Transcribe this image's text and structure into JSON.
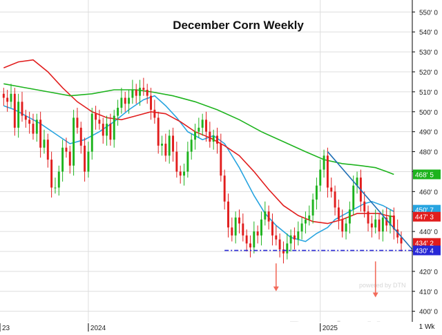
{
  "chart_data": {
    "type": "candlestick",
    "title": "December Corn Weekly",
    "y_axis": {
      "ticks": [
        "550' 0",
        "540' 0",
        "530' 0",
        "520' 0",
        "510' 0",
        "500' 0",
        "490' 0",
        "480' 0",
        "470' 0",
        "460' 0",
        "450' 0",
        "440' 0",
        "430' 0",
        "420' 0",
        "410' 0",
        "400' 0"
      ],
      "tick_values": [
        550,
        540,
        530,
        520,
        510,
        500,
        490,
        480,
        470,
        460,
        450,
        440,
        430,
        420,
        410,
        400
      ],
      "range": [
        394,
        556
      ],
      "side": "right",
      "grid": true
    },
    "x_axis": {
      "labels": [
        "23",
        "2024",
        "2025"
      ],
      "label_weeks": [
        -1,
        23,
        86
      ],
      "week_range": [
        -1,
        111
      ],
      "period": "1 Wk"
    },
    "price_markers": [
      {
        "label": "468' 5",
        "value": 468.6,
        "color": "#1db31d"
      },
      {
        "label": "450' 7",
        "value": 450.9,
        "color": "#27a4e0"
      },
      {
        "label": "447' 3",
        "value": 447.4,
        "color": "#e11d1d"
      },
      {
        "label": "434' 2",
        "value": 434.25,
        "color": "#e11d1d"
      },
      {
        "label": "430' 4",
        "value": 430.5,
        "color": "#2828d6"
      }
    ],
    "candles_close": [
      507,
      505,
      509,
      492,
      505,
      498,
      496,
      494,
      489,
      496,
      482,
      486,
      476,
      462,
      462,
      470,
      482,
      480,
      473,
      497,
      492,
      483,
      470,
      480,
      499,
      496,
      494,
      488,
      494,
      486,
      498,
      502,
      507,
      504,
      507,
      511,
      508,
      512,
      511,
      508,
      501,
      497,
      483,
      484,
      478,
      488,
      480,
      470,
      468,
      470,
      480,
      486,
      490,
      492,
      496,
      490,
      485,
      488,
      484,
      468,
      455,
      442,
      438,
      447,
      444,
      438,
      434,
      432,
      440,
      438,
      446,
      450,
      445,
      438,
      436,
      431,
      429,
      434,
      438,
      436,
      440,
      444,
      446,
      448,
      456,
      463,
      471,
      478,
      462,
      460,
      452,
      446,
      440,
      444,
      451,
      463,
      467,
      455,
      450,
      444,
      442,
      446,
      440,
      447,
      443,
      448,
      441,
      437,
      434
    ],
    "candle_first_week": 0,
    "candle_last_open": 441,
    "moving_averages": [
      {
        "name": "10-week",
        "color": "#27a4e0",
        "points": [
          [
            0,
            503
          ],
          [
            3,
            501
          ],
          [
            6,
            498
          ],
          [
            10,
            494
          ],
          [
            14,
            489
          ],
          [
            18,
            484
          ],
          [
            22,
            486
          ],
          [
            26,
            490
          ],
          [
            30,
            495
          ],
          [
            34,
            501
          ],
          [
            38,
            506
          ],
          [
            41,
            508
          ],
          [
            44,
            503
          ],
          [
            47,
            497
          ],
          [
            50,
            490
          ],
          [
            54,
            486
          ],
          [
            57,
            488
          ],
          [
            60,
            484
          ],
          [
            64,
            472
          ],
          [
            68,
            458
          ],
          [
            71,
            449
          ],
          [
            74,
            443
          ],
          [
            78,
            437
          ],
          [
            82,
            435
          ],
          [
            85,
            439
          ],
          [
            88,
            442
          ],
          [
            90,
            446
          ],
          [
            93,
            449
          ],
          [
            96,
            452
          ],
          [
            98,
            454
          ],
          [
            100,
            455
          ],
          [
            103,
            453
          ],
          [
            106,
            450
          ]
        ]
      },
      {
        "name": "20-week",
        "color": "#e11d1d",
        "points": [
          [
            0,
            522
          ],
          [
            4,
            525
          ],
          [
            8,
            526
          ],
          [
            12,
            520
          ],
          [
            16,
            512
          ],
          [
            20,
            505
          ],
          [
            24,
            500
          ],
          [
            28,
            497
          ],
          [
            32,
            496
          ],
          [
            36,
            498
          ],
          [
            40,
            500
          ],
          [
            44,
            499
          ],
          [
            48,
            495
          ],
          [
            52,
            490
          ],
          [
            56,
            487
          ],
          [
            60,
            483
          ],
          [
            64,
            478
          ],
          [
            68,
            470
          ],
          [
            72,
            461
          ],
          [
            76,
            453
          ],
          [
            80,
            448
          ],
          [
            84,
            445
          ],
          [
            88,
            444
          ],
          [
            92,
            446
          ],
          [
            96,
            449
          ],
          [
            99,
            449
          ],
          [
            102,
            449
          ],
          [
            104,
            448
          ],
          [
            106,
            447.4
          ]
        ]
      },
      {
        "name": "40-week",
        "color": "#1db31d",
        "points": [
          [
            0,
            514
          ],
          [
            6,
            512
          ],
          [
            12,
            510
          ],
          [
            18,
            508
          ],
          [
            24,
            509
          ],
          [
            30,
            511
          ],
          [
            36,
            511
          ],
          [
            40,
            510
          ],
          [
            46,
            508
          ],
          [
            52,
            505
          ],
          [
            58,
            501
          ],
          [
            64,
            496
          ],
          [
            70,
            490
          ],
          [
            76,
            485
          ],
          [
            82,
            480
          ],
          [
            87,
            476
          ],
          [
            92,
            474
          ],
          [
            97,
            473
          ],
          [
            101,
            472
          ],
          [
            104,
            470
          ],
          [
            106,
            468.6
          ]
        ]
      }
    ],
    "trendlines": [
      {
        "type": "resistance",
        "color": "#1f6fb5",
        "from": [
          88,
          480
        ],
        "to": [
          111,
          431
        ]
      },
      {
        "type": "support",
        "color": "#2828d6",
        "style": "dash-dot",
        "from": [
          60,
          430.5
        ],
        "to": [
          111,
          430.5
        ]
      }
    ],
    "arrows": [
      {
        "week": 74,
        "from": 424,
        "to": 410,
        "color": "#f26b5b"
      },
      {
        "week": 101,
        "from": 425,
        "to": 407,
        "color": "#f26b5b"
      }
    ],
    "colors": {
      "up": "#1db31d",
      "down": "#e11d1d",
      "grid": "#dddddd",
      "axis_bg": "#ffffff"
    }
  },
  "branding": {
    "logo": "ProphetX",
    "sub": "powered by DTN"
  }
}
